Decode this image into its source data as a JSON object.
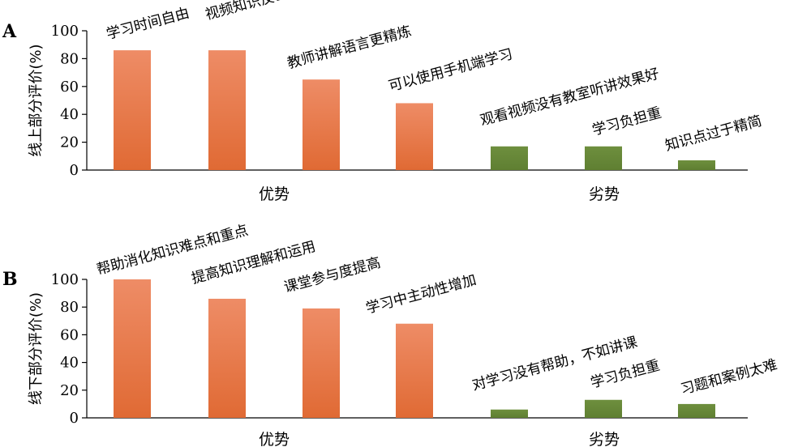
{
  "chart_data": [
    {
      "type": "bar",
      "panel": "A",
      "ylabel": "线上部分评价(%)",
      "ylim": [
        0,
        100
      ],
      "yticks": [
        0,
        20,
        40,
        60,
        80,
        100
      ],
      "groups": [
        "优势",
        "劣势"
      ],
      "categories": [
        "学习时间自由",
        "视频知识反刍",
        "教师讲解语言更精炼",
        "可以使用手机端学习",
        "观看视频没有教室听讲效果好",
        "学习负担重",
        "知识点过于精简"
      ],
      "values": [
        86,
        86,
        65,
        48,
        17,
        17,
        7
      ],
      "group_of": [
        0,
        0,
        0,
        0,
        1,
        1,
        1
      ],
      "colors": {
        "优势": "#e8784a",
        "劣势": "#6a8a3a"
      }
    },
    {
      "type": "bar",
      "panel": "B",
      "ylabel": "线下部分评价(%)",
      "ylim": [
        0,
        100
      ],
      "yticks": [
        0,
        20,
        40,
        60,
        80,
        100
      ],
      "groups": [
        "优势",
        "劣势"
      ],
      "categories": [
        "帮助消化知识难点和重点",
        "提高知识理解和运用",
        "课堂参与度提高",
        "学习中主动性增加",
        "对学习没有帮助，不如讲课",
        "学习负担重",
        "习题和案例太难"
      ],
      "values": [
        100,
        86,
        79,
        68,
        6,
        13,
        10
      ],
      "group_of": [
        0,
        0,
        0,
        0,
        1,
        1,
        1
      ],
      "colors": {
        "优势": "#e8784a",
        "劣势": "#6a8a3a"
      }
    }
  ]
}
